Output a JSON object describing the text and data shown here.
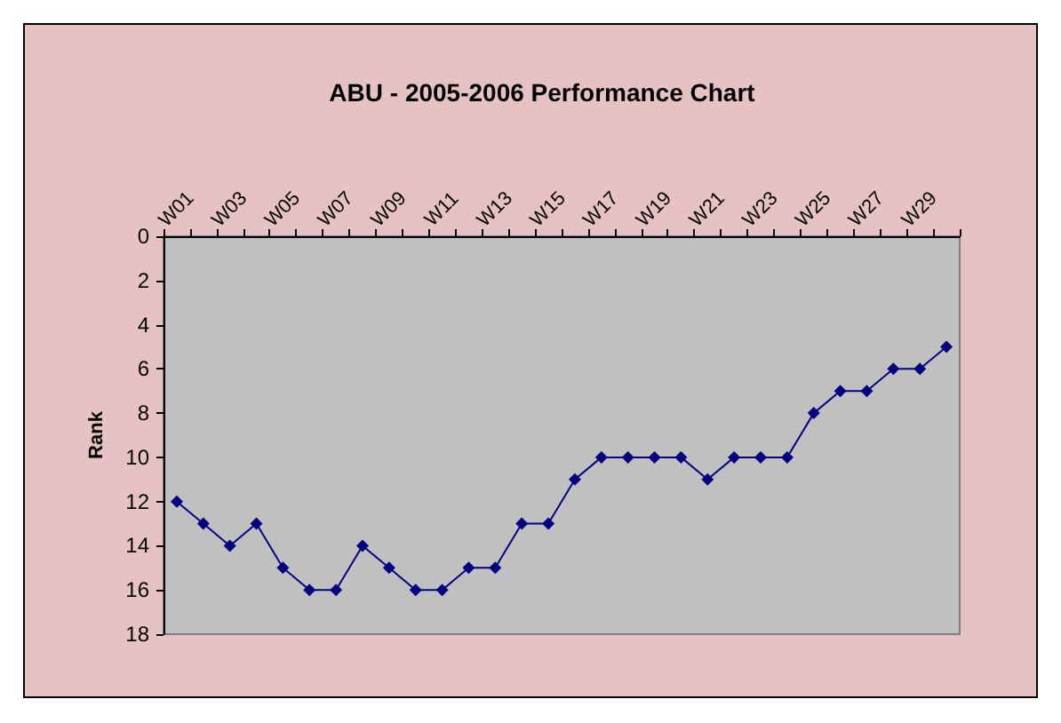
{
  "chart_data": {
    "type": "line",
    "title": "ABU - 2005-2006 Performance Chart",
    "ylabel": "Rank",
    "categories": [
      "W01",
      null,
      "W03",
      null,
      "W05",
      null,
      "W07",
      null,
      "W09",
      null,
      "W11",
      null,
      "W13",
      null,
      "W15",
      null,
      "W17",
      null,
      "W19",
      null,
      "W21",
      null,
      "W23",
      null,
      "W25",
      null,
      "W27",
      null,
      "W29",
      null
    ],
    "series": [
      {
        "color": "#000080",
        "values": [
          12,
          13,
          14,
          13,
          15,
          16,
          16,
          14,
          15,
          16,
          16,
          15,
          15,
          13,
          13,
          11,
          10,
          10,
          10,
          10,
          11,
          10,
          10,
          10,
          8,
          7,
          7,
          6,
          6,
          5
        ]
      }
    ],
    "ylim": [
      18,
      0
    ],
    "yticks": [
      0,
      2,
      4,
      6,
      8,
      10,
      12,
      14,
      16,
      18
    ],
    "grid": false,
    "marker": "diamond",
    "line_style": "solid"
  }
}
